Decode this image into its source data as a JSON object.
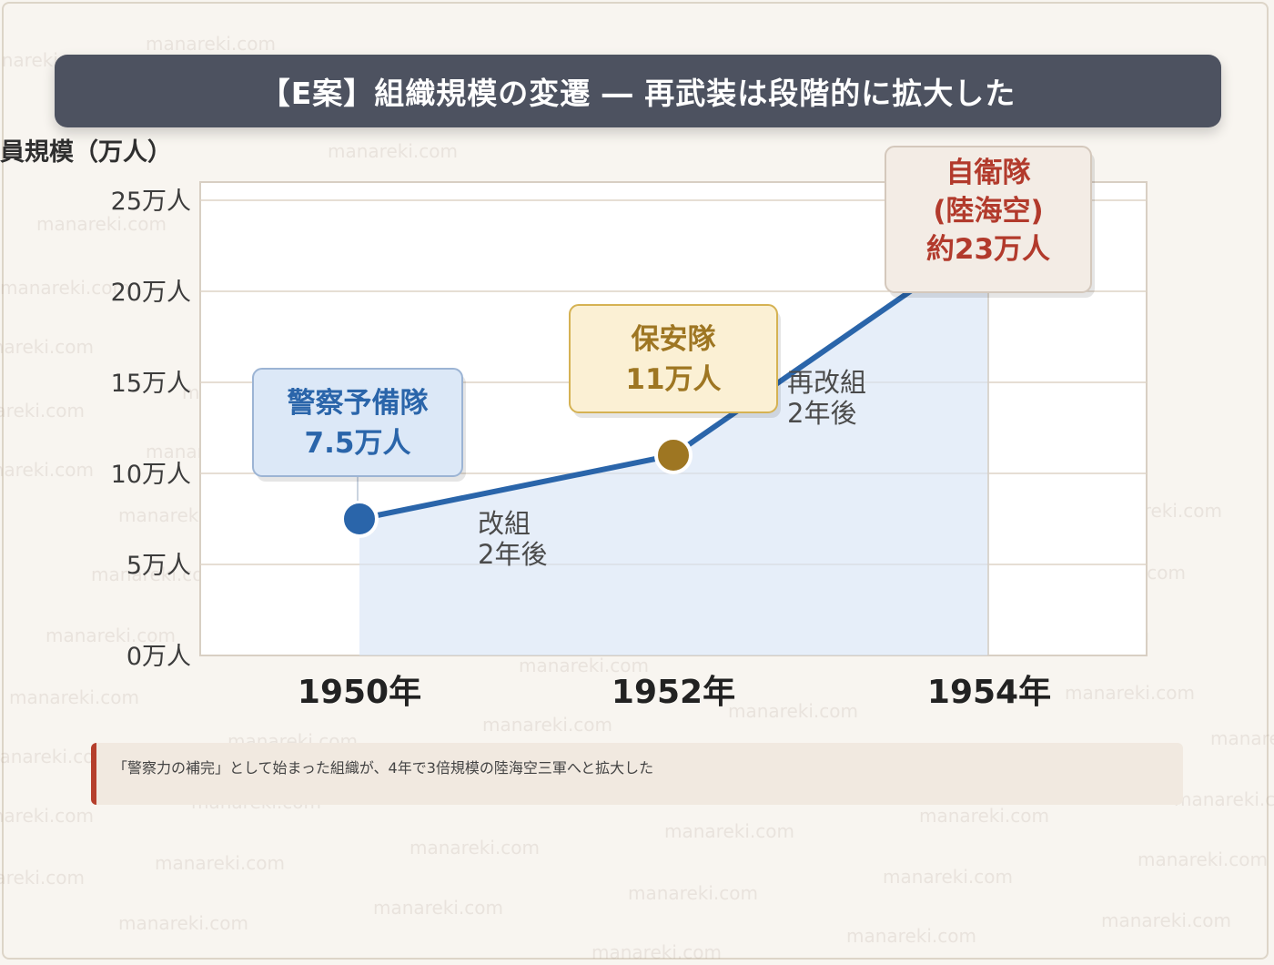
{
  "title": "【E案】組織規模の変遷 ― 再武装は段階的に拡大した",
  "caption": "「警察力の補完」として始まった組織が、4年で3倍規模の陸海空三軍へと拡大した",
  "watermark": "manareki.com",
  "chart_data": {
    "type": "line",
    "title": "【E案】組織規模の変遷 ― 再武装は段階的に拡大した",
    "xlabel": "",
    "ylabel": "員規模（万人）",
    "categories": [
      "1950年",
      "1952年",
      "1954年"
    ],
    "x": [
      1950,
      1952,
      1954
    ],
    "series": [
      {
        "values": [
          7.5,
          11,
          23
        ],
        "color": "#2a65aa"
      }
    ],
    "ylim": [
      0,
      26
    ],
    "yticks": [
      0,
      5,
      10,
      15,
      20,
      25
    ],
    "ytick_labels": [
      "0万人",
      "5万人",
      "10万人",
      "15万人",
      "20万人",
      "25万人"
    ],
    "grid": true,
    "points": [
      {
        "name": "警察予備隊",
        "value": "7.5万人",
        "color": "#2a65aa"
      },
      {
        "name": "保安隊",
        "value": "11万人",
        "color": "#9e7622"
      },
      {
        "name": "自衛隊\n(陸海空)",
        "value": "約23万人",
        "color": "#b23a2c"
      }
    ],
    "annotations": [
      {
        "text": "改組\n2年後"
      },
      {
        "text": "再改組\n2年後"
      }
    ]
  }
}
